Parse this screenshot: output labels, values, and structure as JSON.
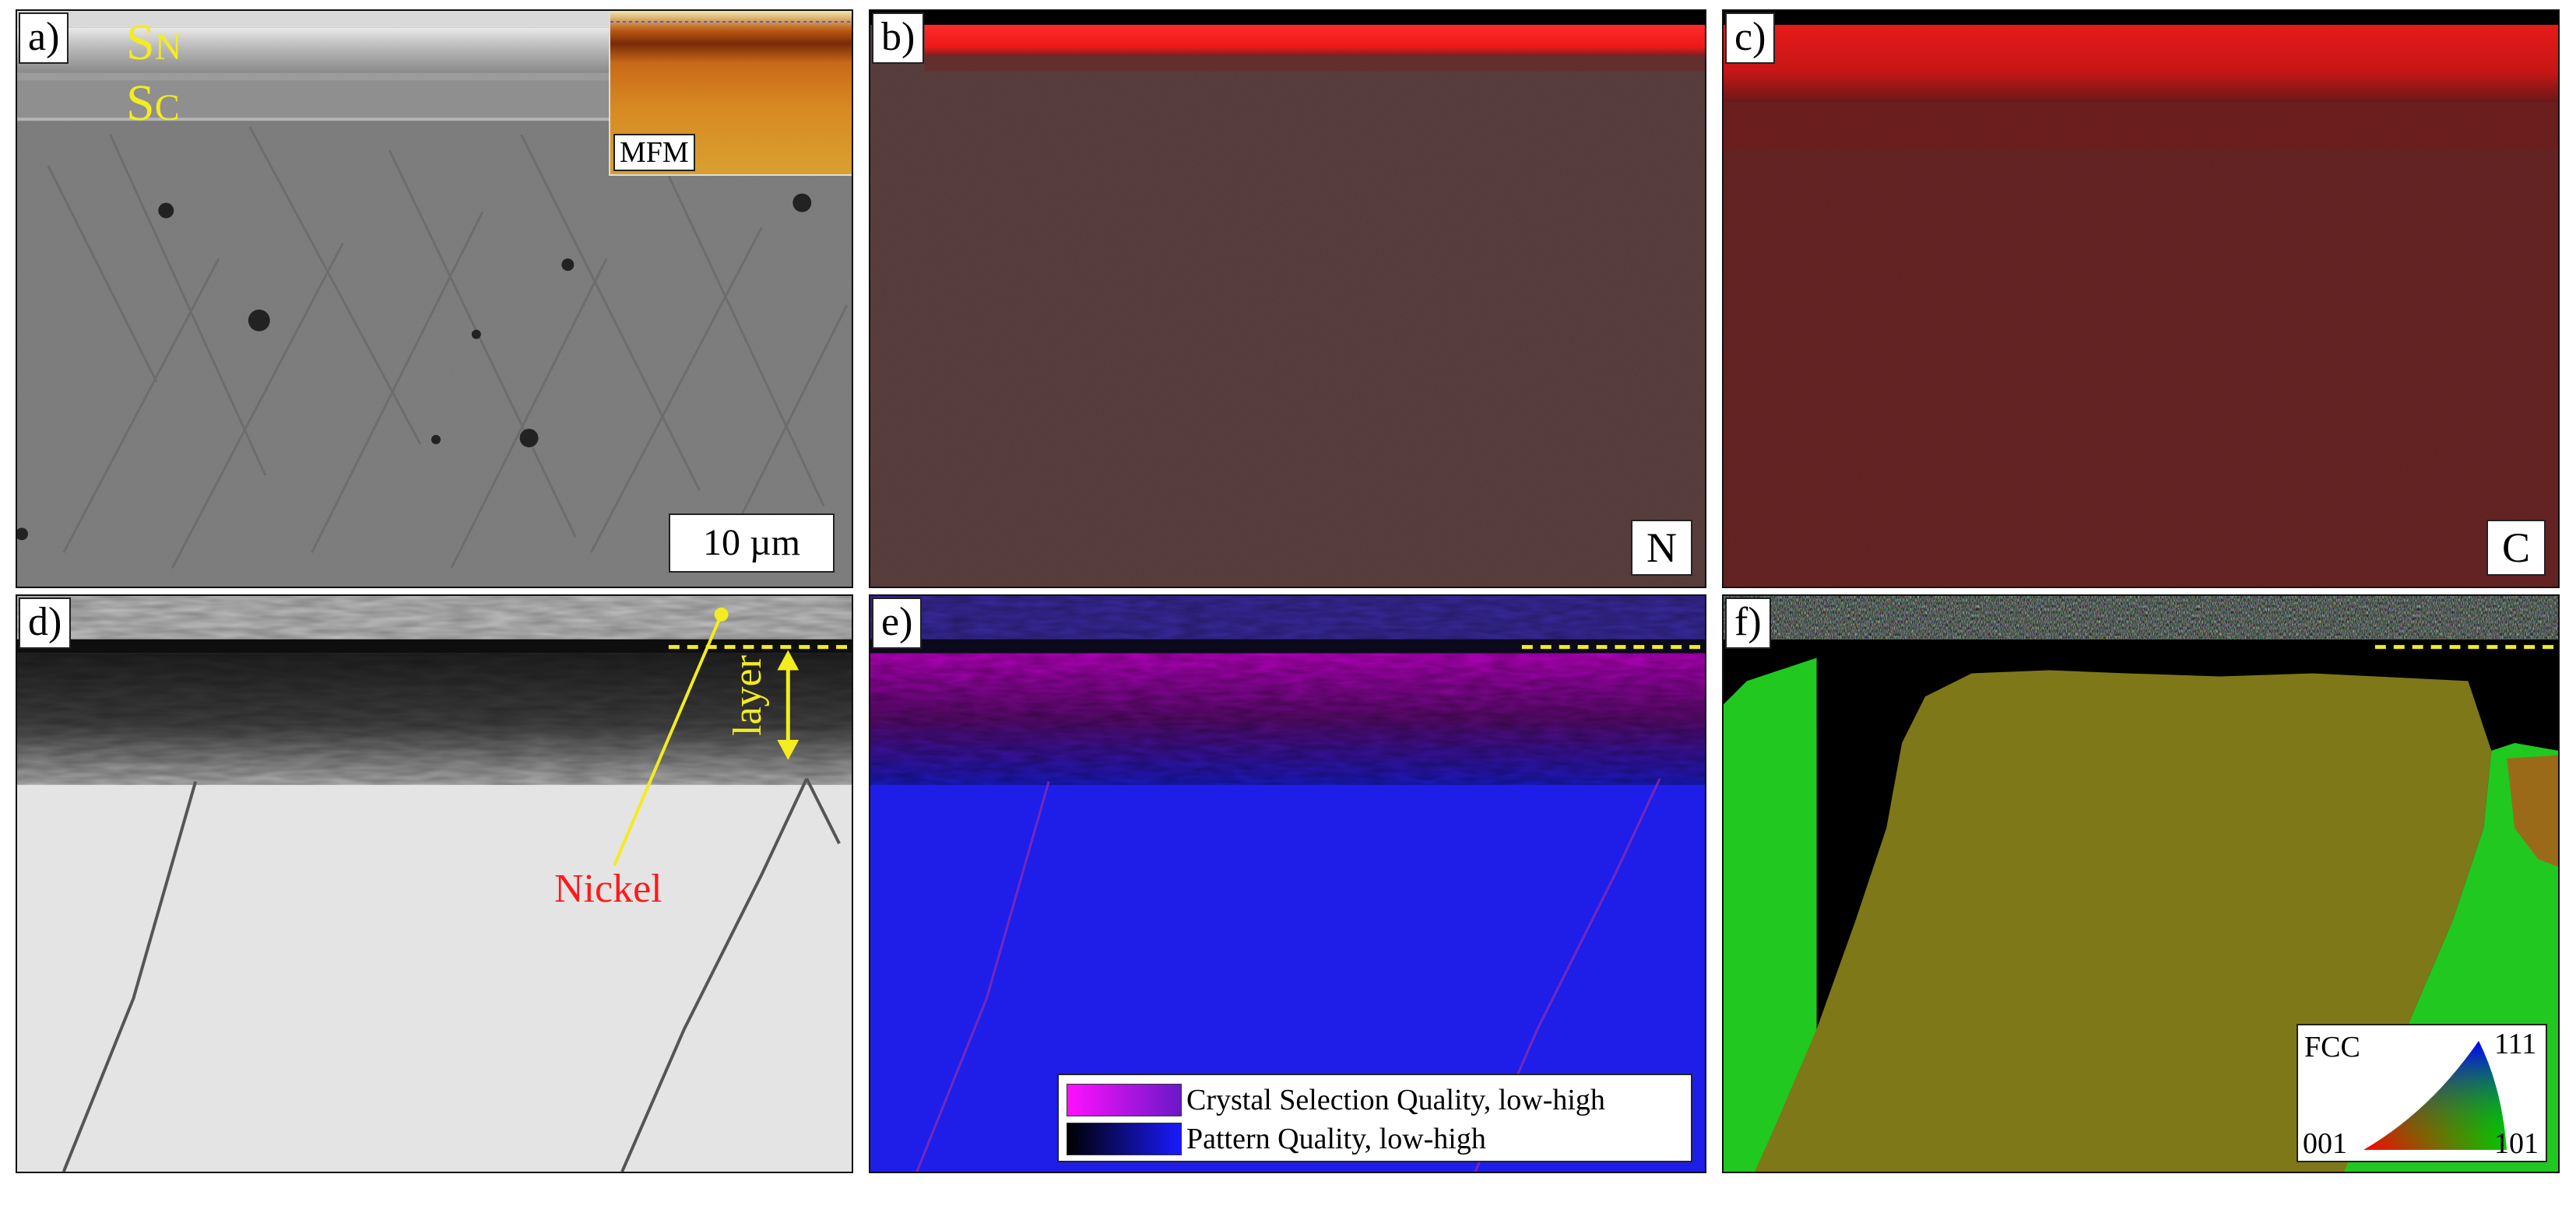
{
  "panels": {
    "a": {
      "label": "a)",
      "sn": "S",
      "sn_sub": "N",
      "sc": "S",
      "sc_sub": "C",
      "inset_label": "MFM",
      "scale_bar": "10 µm"
    },
    "b": {
      "label": "b)",
      "element": "N"
    },
    "c": {
      "label": "c)",
      "element": "C"
    },
    "d": {
      "label": "d)",
      "layer": "layer",
      "nickel": "Nickel"
    },
    "e": {
      "label": "e)",
      "legend": [
        {
          "text": "Crystal Selection Quality, low-high",
          "color_low": "#ff10ff",
          "color_high": "#6a18c8"
        },
        {
          "text": "Pattern Quality, low-high",
          "color_low": "#000000",
          "color_high": "#1a1aff"
        }
      ]
    },
    "f": {
      "label": "f)",
      "ipf_title": "FCC",
      "ipf_corner_001": "001",
      "ipf_corner_101": "101",
      "ipf_corner_111": "111"
    }
  },
  "colors": {
    "annotation_yellow": "#f2ec20",
    "annotation_red": "#ff1a1a",
    "nitrogen_red": "#ff1e1e",
    "carbon_red": "#e61a1a",
    "ipf_red": "#ff0000",
    "ipf_green": "#00c800",
    "ipf_blue": "#0000ff"
  }
}
